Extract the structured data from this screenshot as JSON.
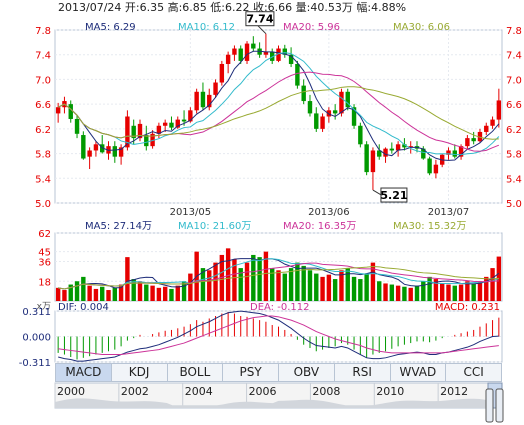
{
  "header": {
    "date": "2013/07/24",
    "open": "开:6.35",
    "high": "高:6.85",
    "low": "低:6.22",
    "close": "收:6.66",
    "volume": "量:40.53万",
    "change": "幅:4.88%"
  },
  "tabs": [
    "MACD",
    "KDJ",
    "BOLL",
    "PSY",
    "OBV",
    "RSI",
    "WVAD",
    "CCI"
  ],
  "active_tab": "MACD",
  "colors": {
    "up": "#e60000",
    "down": "#009900",
    "ma5": "#1e2d7a",
    "ma10": "#33bbcc",
    "ma20": "#cc3399",
    "ma30": "#99aa33"
  },
  "chart_data": [
    {
      "type": "candlestick",
      "legend": [
        "MA5: 6.29",
        "MA10: 6.12",
        "MA20: 5.96",
        "MA30: 6.06"
      ],
      "yticks": [
        "7.8",
        "7.4",
        "7.0",
        "6.6",
        "6.2",
        "5.8",
        "5.4",
        "5.0"
      ],
      "ylim": [
        5.0,
        7.8
      ],
      "xticks": [
        "2013/05",
        "2013/06",
        "2013/07"
      ],
      "annotations": {
        "high": "7.74",
        "low": "5.21"
      },
      "ohlc": [
        [
          6.45,
          6.62,
          6.3,
          6.55
        ],
        [
          6.55,
          6.72,
          6.45,
          6.65
        ],
        [
          6.6,
          6.66,
          6.3,
          6.36
        ],
        [
          6.36,
          6.42,
          6.05,
          6.12
        ],
        [
          6.1,
          6.16,
          5.7,
          5.72
        ],
        [
          5.75,
          5.9,
          5.55,
          5.85
        ],
        [
          5.85,
          6.0,
          5.75,
          5.95
        ],
        [
          5.95,
          6.1,
          5.8,
          5.82
        ],
        [
          5.8,
          6.0,
          5.7,
          5.92
        ],
        [
          5.92,
          6.0,
          5.65,
          5.75
        ],
        [
          5.75,
          5.95,
          5.62,
          5.9
        ],
        [
          5.9,
          6.5,
          5.85,
          6.4
        ],
        [
          6.25,
          6.35,
          5.95,
          6.05
        ],
        [
          6.05,
          6.35,
          6.0,
          6.28
        ],
        [
          6.1,
          6.25,
          5.85,
          5.92
        ],
        [
          5.92,
          6.18,
          5.88,
          6.12
        ],
        [
          6.12,
          6.3,
          6.05,
          6.25
        ],
        [
          6.25,
          6.35,
          6.15,
          6.3
        ],
        [
          6.3,
          6.4,
          6.18,
          6.22
        ],
        [
          6.22,
          6.4,
          6.2,
          6.35
        ],
        [
          6.35,
          6.5,
          6.25,
          6.32
        ],
        [
          6.32,
          6.55,
          6.3,
          6.5
        ],
        [
          6.5,
          6.85,
          6.45,
          6.8
        ],
        [
          6.8,
          6.95,
          6.5,
          6.55
        ],
        [
          6.55,
          6.85,
          6.5,
          6.75
        ],
        [
          6.75,
          7.0,
          6.7,
          6.95
        ],
        [
          6.95,
          7.3,
          6.9,
          7.25
        ],
        [
          7.25,
          7.45,
          7.1,
          7.4
        ],
        [
          7.4,
          7.55,
          7.3,
          7.5
        ],
        [
          7.5,
          7.55,
          7.25,
          7.3
        ],
        [
          7.3,
          7.62,
          7.25,
          7.58
        ],
        [
          7.58,
          7.7,
          7.45,
          7.5
        ],
        [
          7.5,
          7.6,
          7.35,
          7.4
        ],
        [
          7.4,
          7.74,
          7.35,
          7.45
        ],
        [
          7.45,
          7.5,
          7.25,
          7.3
        ],
        [
          7.3,
          7.55,
          7.28,
          7.5
        ],
        [
          7.5,
          7.56,
          7.35,
          7.4
        ],
        [
          7.4,
          7.52,
          7.2,
          7.25
        ],
        [
          7.25,
          7.3,
          6.85,
          6.9
        ],
        [
          6.9,
          7.0,
          6.6,
          6.65
        ],
        [
          6.65,
          6.75,
          6.4,
          6.45
        ],
        [
          6.45,
          6.55,
          6.15,
          6.2
        ],
        [
          6.2,
          6.45,
          6.15,
          6.4
        ],
        [
          6.4,
          6.55,
          6.3,
          6.5
        ],
        [
          6.5,
          6.6,
          6.35,
          6.45
        ],
        [
          6.45,
          6.85,
          6.4,
          6.8
        ],
        [
          6.8,
          6.85,
          6.5,
          6.55
        ],
        [
          6.55,
          6.6,
          6.2,
          6.25
        ],
        [
          6.25,
          6.3,
          5.9,
          5.95
        ],
        [
          5.95,
          6.0,
          5.45,
          5.5
        ],
        [
          5.5,
          5.9,
          5.21,
          5.85
        ],
        [
          5.85,
          5.95,
          5.7,
          5.75
        ],
        [
          5.75,
          5.9,
          5.65,
          5.88
        ],
        [
          5.88,
          5.98,
          5.8,
          5.85
        ],
        [
          5.85,
          6.0,
          5.75,
          5.95
        ],
        [
          5.95,
          6.05,
          5.85,
          5.9
        ],
        [
          5.9,
          6.0,
          5.8,
          5.92
        ],
        [
          5.92,
          6.0,
          5.82,
          5.88
        ],
        [
          5.88,
          5.92,
          5.7,
          5.72
        ],
        [
          5.72,
          5.75,
          5.45,
          5.48
        ],
        [
          5.48,
          5.7,
          5.4,
          5.62
        ],
        [
          5.62,
          5.8,
          5.58,
          5.78
        ],
        [
          5.78,
          5.9,
          5.7,
          5.85
        ],
        [
          5.85,
          5.95,
          5.72,
          5.75
        ],
        [
          5.75,
          5.95,
          5.7,
          5.92
        ],
        [
          5.92,
          6.1,
          5.88,
          6.05
        ],
        [
          6.05,
          6.15,
          5.95,
          6.0
        ],
        [
          6.0,
          6.2,
          5.98,
          6.15
        ],
        [
          6.15,
          6.3,
          6.1,
          6.25
        ],
        [
          6.25,
          6.4,
          6.2,
          6.35
        ],
        [
          6.35,
          6.85,
          6.22,
          6.66
        ]
      ]
    },
    {
      "type": "bar",
      "legend": [
        "MA5: 27.14万",
        "MA10: 21.60万",
        "MA20: 16.35万",
        "MA30: 15.32万"
      ],
      "yticks": [
        "62",
        "45",
        "36",
        "18"
      ],
      "ylim": [
        0,
        62
      ],
      "unit": "x万",
      "volumes": [
        12,
        10,
        15,
        18,
        22,
        14,
        11,
        13,
        10,
        12,
        15,
        40,
        20,
        18,
        15,
        14,
        12,
        13,
        11,
        14,
        18,
        25,
        45,
        30,
        28,
        35,
        42,
        48,
        38,
        30,
        35,
        42,
        40,
        45,
        30,
        28,
        25,
        30,
        35,
        32,
        28,
        25,
        22,
        24,
        20,
        28,
        30,
        22,
        20,
        25,
        35,
        18,
        16,
        15,
        14,
        13,
        12,
        14,
        18,
        22,
        20,
        16,
        15,
        14,
        15,
        18,
        16,
        18,
        22,
        30,
        40.5
      ]
    },
    {
      "type": "macd",
      "dif": "DIF: 0.004",
      "dea": "DEA: -0.112",
      "macd": "MACD: 0.231",
      "yticks": [
        "0.311",
        "0.000",
        "-0.311"
      ],
      "ylim": [
        -0.311,
        0.311
      ],
      "hist": [
        -0.2,
        -0.22,
        -0.25,
        -0.28,
        -0.26,
        -0.24,
        -0.22,
        -0.2,
        -0.18,
        -0.16,
        -0.12,
        -0.05,
        -0.02,
        0.02,
        0.0,
        0.03,
        0.05,
        0.07,
        0.08,
        0.1,
        0.12,
        0.15,
        0.2,
        0.18,
        0.22,
        0.25,
        0.28,
        0.3,
        0.28,
        0.25,
        0.24,
        0.22,
        0.2,
        0.18,
        0.14,
        0.12,
        0.08,
        0.03,
        -0.04,
        -0.1,
        -0.14,
        -0.18,
        -0.16,
        -0.14,
        -0.12,
        -0.08,
        -0.1,
        -0.16,
        -0.22,
        -0.26,
        -0.22,
        -0.2,
        -0.18,
        -0.15,
        -0.12,
        -0.1,
        -0.08,
        -0.06,
        -0.06,
        -0.07,
        -0.05,
        -0.02,
        0.0,
        0.02,
        0.04,
        0.06,
        0.08,
        0.12,
        0.16,
        0.2,
        0.23
      ],
      "dif_line": [
        -0.25,
        -0.27,
        -0.28,
        -0.3,
        -0.3,
        -0.29,
        -0.28,
        -0.27,
        -0.26,
        -0.25,
        -0.22,
        -0.19,
        -0.17,
        -0.15,
        -0.14,
        -0.12,
        -0.1,
        -0.07,
        -0.04,
        -0.01,
        0.03,
        0.07,
        0.12,
        0.15,
        0.18,
        0.22,
        0.26,
        0.29,
        0.3,
        0.31,
        0.3,
        0.29,
        0.28,
        0.26,
        0.23,
        0.2,
        0.15,
        0.1,
        0.04,
        -0.02,
        -0.07,
        -0.11,
        -0.12,
        -0.13,
        -0.14,
        -0.12,
        -0.14,
        -0.18,
        -0.22,
        -0.26,
        -0.27,
        -0.27,
        -0.26,
        -0.24,
        -0.22,
        -0.21,
        -0.2,
        -0.19,
        -0.2,
        -0.22,
        -0.22,
        -0.2,
        -0.19,
        -0.17,
        -0.15,
        -0.13,
        -0.1,
        -0.06,
        -0.03,
        0.0,
        0.004
      ],
      "dea_line": [
        -0.15,
        -0.16,
        -0.17,
        -0.18,
        -0.19,
        -0.2,
        -0.21,
        -0.22,
        -0.22,
        -0.22,
        -0.22,
        -0.21,
        -0.2,
        -0.19,
        -0.18,
        -0.17,
        -0.16,
        -0.14,
        -0.12,
        -0.1,
        -0.08,
        -0.05,
        -0.02,
        0.01,
        0.04,
        0.07,
        0.1,
        0.13,
        0.16,
        0.19,
        0.21,
        0.23,
        0.24,
        0.25,
        0.25,
        0.24,
        0.22,
        0.2,
        0.17,
        0.14,
        0.1,
        0.06,
        0.03,
        0.0,
        -0.03,
        -0.05,
        -0.07,
        -0.09,
        -0.11,
        -0.14,
        -0.16,
        -0.18,
        -0.19,
        -0.2,
        -0.2,
        -0.2,
        -0.2,
        -0.2,
        -0.2,
        -0.2,
        -0.2,
        -0.2,
        -0.19,
        -0.18,
        -0.17,
        -0.16,
        -0.15,
        -0.14,
        -0.13,
        -0.12,
        -0.112
      ]
    }
  ],
  "timeline": {
    "years": [
      "2000",
      "2002",
      "2004",
      "2006",
      "2008",
      "2010",
      "2012"
    ]
  }
}
